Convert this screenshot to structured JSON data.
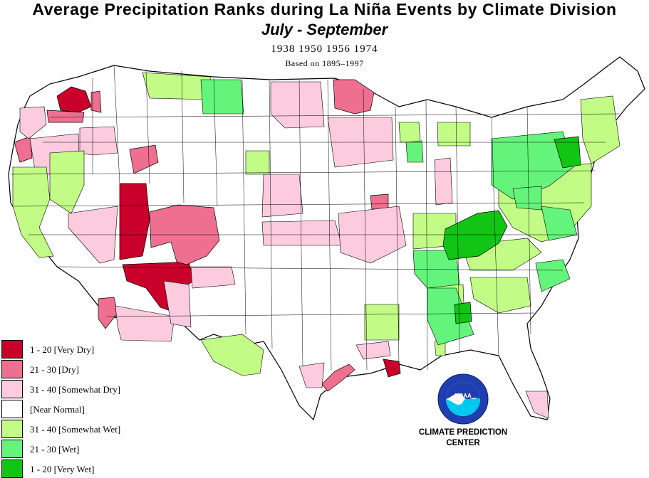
{
  "title": "Average Precipitation Ranks during La  Niña Events by Climate Division",
  "subtitle": "July  -  September",
  "years_line": "1938 1950 1956 1974",
  "basis_line": "Based on 1895–1997",
  "legend": [
    {
      "label": "1 - 20 [Very Dry]",
      "color": "#c8002a"
    },
    {
      "label": "21 - 30 [Dry]",
      "color": "#ef6f91"
    },
    {
      "label": "31 - 40 [Somewhat Dry]",
      "color": "#fccbdd"
    },
    {
      "label": " [Near Normal]",
      "color": "#ffffff"
    },
    {
      "label": "31 - 40 [Somewhat Wet]",
      "color": "#c2fb85"
    },
    {
      "label": "21 - 30 [Wet]",
      "color": "#65f47b"
    },
    {
      "label": "1 - 20 [Very Wet]",
      "color": "#12c413"
    }
  ],
  "logo_text": "NOAA",
  "center_label_1": "CLIMATE PREDICTION",
  "center_label_2": "CENTER"
}
